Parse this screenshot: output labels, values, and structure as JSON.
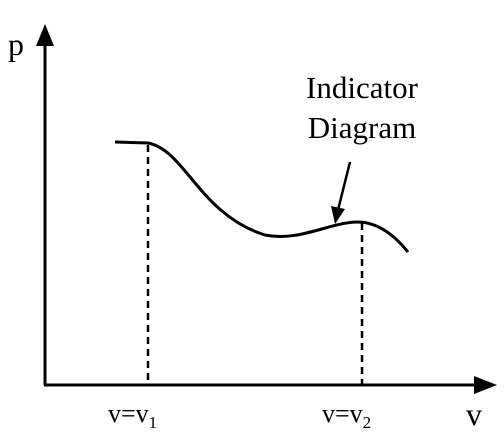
{
  "axes": {
    "y_label": "p",
    "x_label": "v"
  },
  "annotation": {
    "lines": [
      "Indicator",
      "Diagram"
    ]
  },
  "markers": [
    {
      "label": "v=v",
      "subscript": "1"
    },
    {
      "label": "v=v",
      "subscript": "2"
    }
  ]
}
